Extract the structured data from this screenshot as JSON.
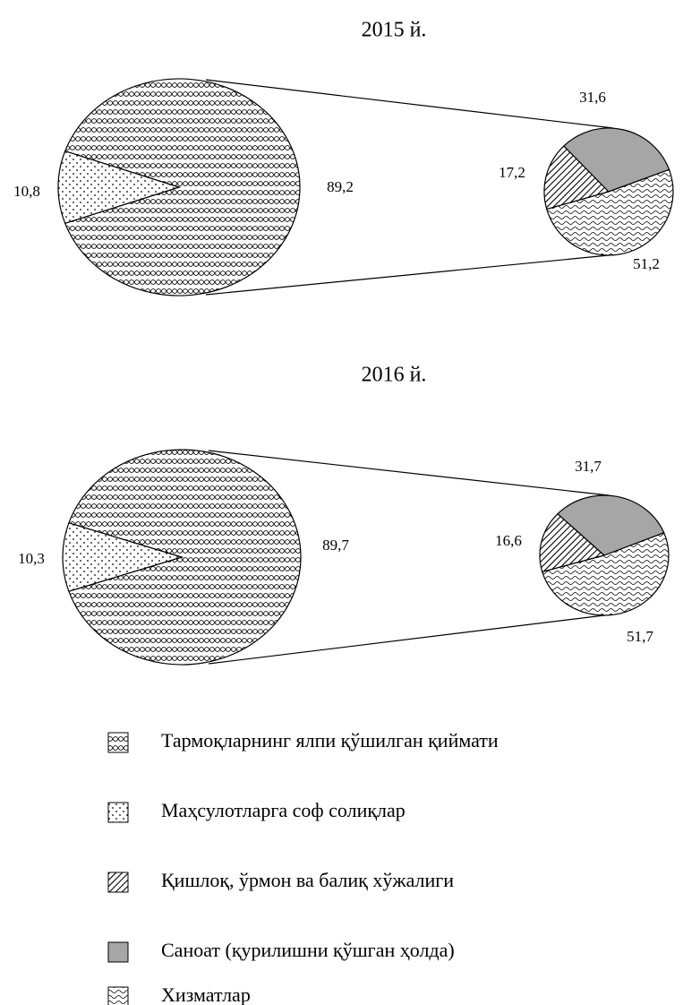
{
  "chart_data": [
    {
      "type": "pie-of-pie",
      "title": "2015 й.",
      "values": [
        89.2,
        10.8
      ],
      "value_labels": [
        "89,2",
        "10,8"
      ],
      "sub_values": [
        17.2,
        31.6,
        51.2
      ],
      "sub_value_labels": [
        "17,2",
        "31,6",
        "51,2"
      ]
    },
    {
      "type": "pie-of-pie",
      "title": "2016 й.",
      "values": [
        89.7,
        10.3
      ],
      "value_labels": [
        "89,7",
        "10,3"
      ],
      "sub_values": [
        16.6,
        31.7,
        51.7
      ],
      "sub_value_labels": [
        "16,6",
        "31,7",
        "51,7"
      ]
    }
  ],
  "legend": [
    "Тармоқларнинг ялпи қўшилган қиймати",
    "Маҳсулотларга соф солиқлар",
    "Қишлоқ, ўрмон ва балиқ хўжалиги",
    "Саноат (қурилишни қўшган ҳолда)",
    "Хизматлар"
  ]
}
